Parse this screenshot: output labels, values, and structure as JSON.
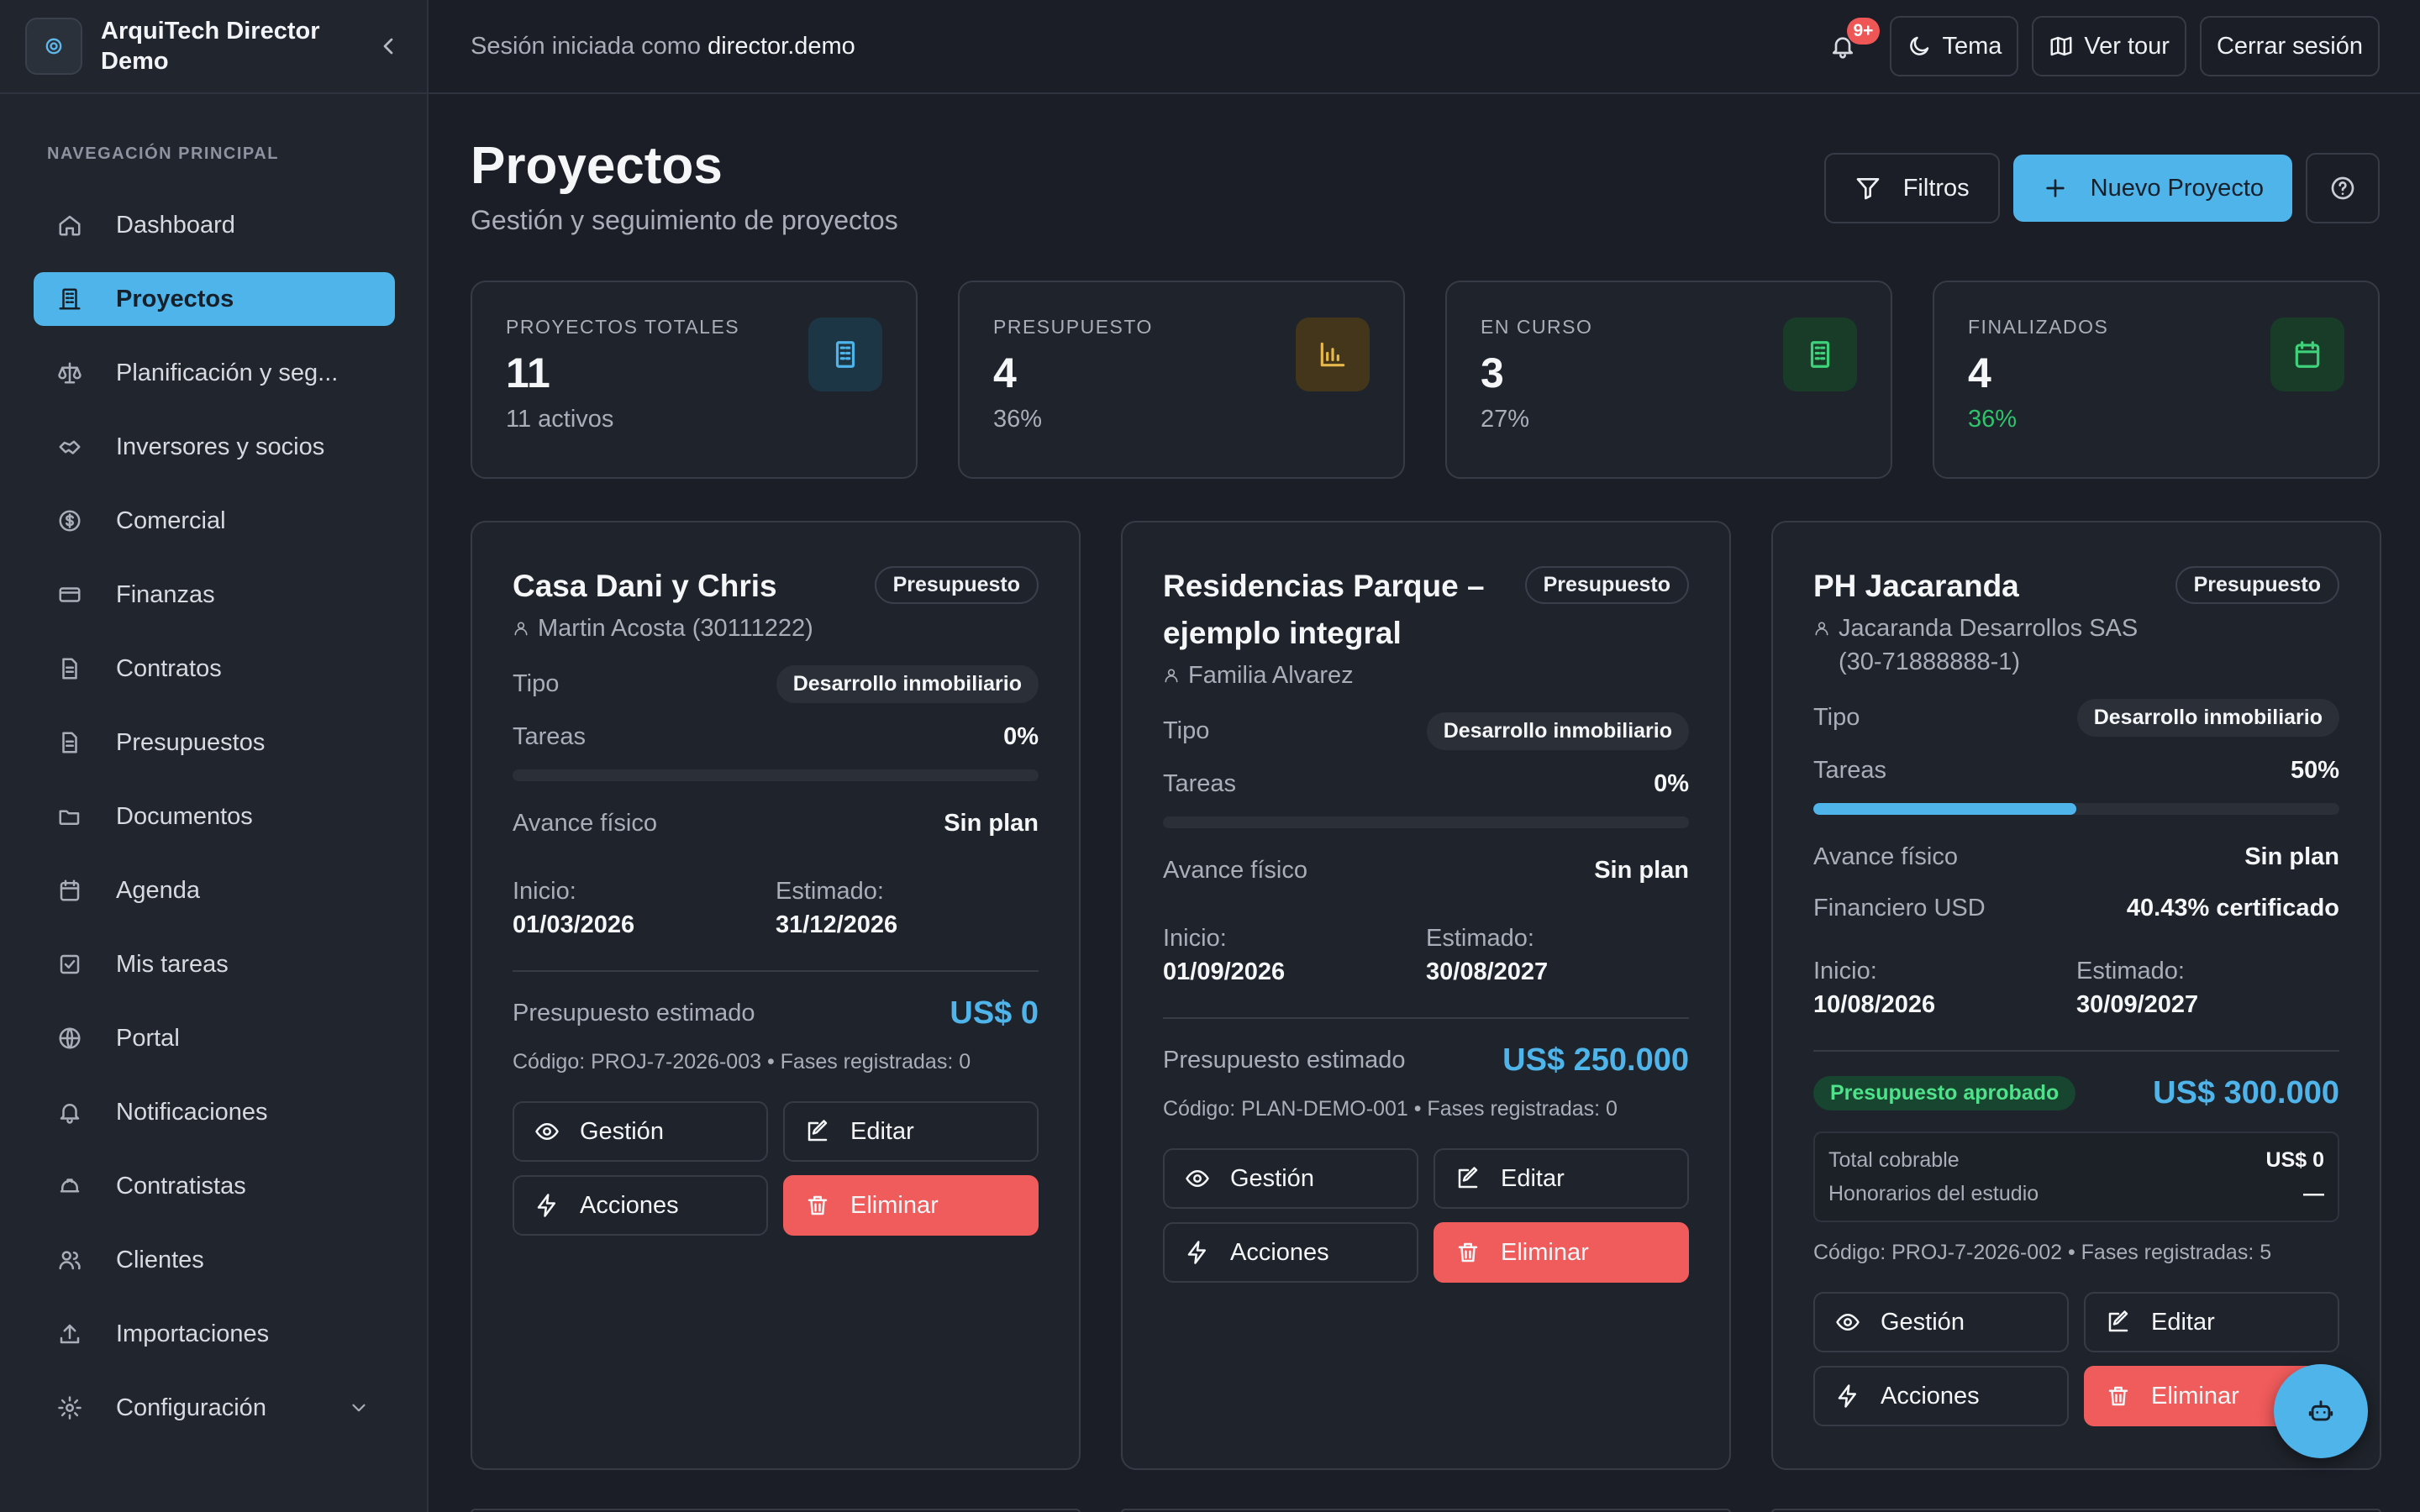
{
  "app": {
    "brand": "ArquiTech Director Demo"
  },
  "topbar": {
    "session_prefix": "Sesión iniciada como",
    "session_user": "director.demo",
    "notif_count": "9+",
    "theme_label": "Tema",
    "tour_label": "Ver tour",
    "logout_label": "Cerrar sesión"
  },
  "sidebar": {
    "section_title": "NAVEGACIÓN PRINCIPAL",
    "items": [
      {
        "label": "Dashboard",
        "icon": "home-icon"
      },
      {
        "label": "Proyectos",
        "icon": "building-icon",
        "active": true
      },
      {
        "label": "Planificación y seg...",
        "icon": "scale-icon"
      },
      {
        "label": "Inversores y socios",
        "icon": "handshake-icon"
      },
      {
        "label": "Comercial",
        "icon": "dollar-circle-icon"
      },
      {
        "label": "Finanzas",
        "icon": "credit-card-icon"
      },
      {
        "label": "Contratos",
        "icon": "file-text-icon"
      },
      {
        "label": "Presupuestos",
        "icon": "file-text-icon"
      },
      {
        "label": "Documentos",
        "icon": "folder-open-icon"
      },
      {
        "label": "Agenda",
        "icon": "calendar-icon"
      },
      {
        "label": "Mis tareas",
        "icon": "check-square-icon"
      },
      {
        "label": "Portal",
        "icon": "globe-icon"
      },
      {
        "label": "Notificaciones",
        "icon": "bell-icon"
      },
      {
        "label": "Contratistas",
        "icon": "hard-hat-icon"
      },
      {
        "label": "Clientes",
        "icon": "users-icon"
      },
      {
        "label": "Importaciones",
        "icon": "upload-icon"
      },
      {
        "label": "Configuración",
        "icon": "gear-icon"
      }
    ]
  },
  "page": {
    "title": "Proyectos",
    "subtitle": "Gestión y seguimiento de proyectos",
    "filters_label": "Filtros",
    "new_label": "Nuevo Proyecto"
  },
  "stats": [
    {
      "label": "PROYECTOS TOTALES",
      "value": "11",
      "sub": "11 activos",
      "color": "#4eb4ea",
      "bg": "#1d3645"
    },
    {
      "label": "PRESUPUESTO",
      "value": "4",
      "sub": "36%",
      "color": "#e7b84a",
      "bg": "#43361a"
    },
    {
      "label": "EN CURSO",
      "value": "3",
      "sub": "27%",
      "color": "#3ed27a",
      "bg": "#183c28"
    },
    {
      "label": "FINALIZADOS",
      "value": "4",
      "sub": "36%",
      "color": "#3ed27a",
      "bg": "#183c28"
    }
  ],
  "labels": {
    "tipo": "Tipo",
    "tareas": "Tareas",
    "avance": "Avance físico",
    "financiero": "Financiero USD",
    "inicio": "Inicio:",
    "estimado": "Estimado:",
    "presupuesto_estimado": "Presupuesto estimado",
    "gestion": "Gestión",
    "editar": "Editar",
    "acciones": "Acciones",
    "eliminar": "Eliminar"
  },
  "projects": [
    {
      "title": "Casa Dani y Chris",
      "status": "Presupuesto",
      "client": "Martin Acosta (30111222)",
      "type": "Desarrollo inmobiliario",
      "tasks_pct": "0%",
      "tasks_progress": 0,
      "physical": "Sin plan",
      "start": "01/03/2026",
      "estimated": "31/12/2026",
      "budget": "US$ 0",
      "code": "Código: PROJ-7-2026-003 • Fases registradas: 0"
    },
    {
      "title": "Residencias Parque – ejemplo integral",
      "status": "Presupuesto",
      "client": "Familia Alvarez",
      "type": "Desarrollo inmobiliario",
      "tasks_pct": "0%",
      "tasks_progress": 0,
      "physical": "Sin plan",
      "start": "01/09/2026",
      "estimated": "30/08/2027",
      "budget": "US$ 250.000",
      "code": "Código: PLAN-DEMO-001 • Fases registradas: 0"
    },
    {
      "title": "PH Jacaranda",
      "status": "Presupuesto",
      "client": "Jacaranda Desarrollos SAS (30-71888888-1)",
      "type": "Desarrollo inmobiliario",
      "tasks_pct": "50%",
      "tasks_progress": 0.5,
      "physical": "Sin plan",
      "financial": "40.43% certificado",
      "start": "10/08/2026",
      "estimated": "30/09/2027",
      "approved_label": "Presupuesto aprobado",
      "budget": "US$ 300.000",
      "total_cobrable_label": "Total cobrable",
      "total_cobrable": "US$ 0",
      "honorarios_label": "Honorarios del estudio",
      "honorarios": "—",
      "code": "Código: PROJ-7-2026-002 • Fases registradas: 5"
    }
  ]
}
